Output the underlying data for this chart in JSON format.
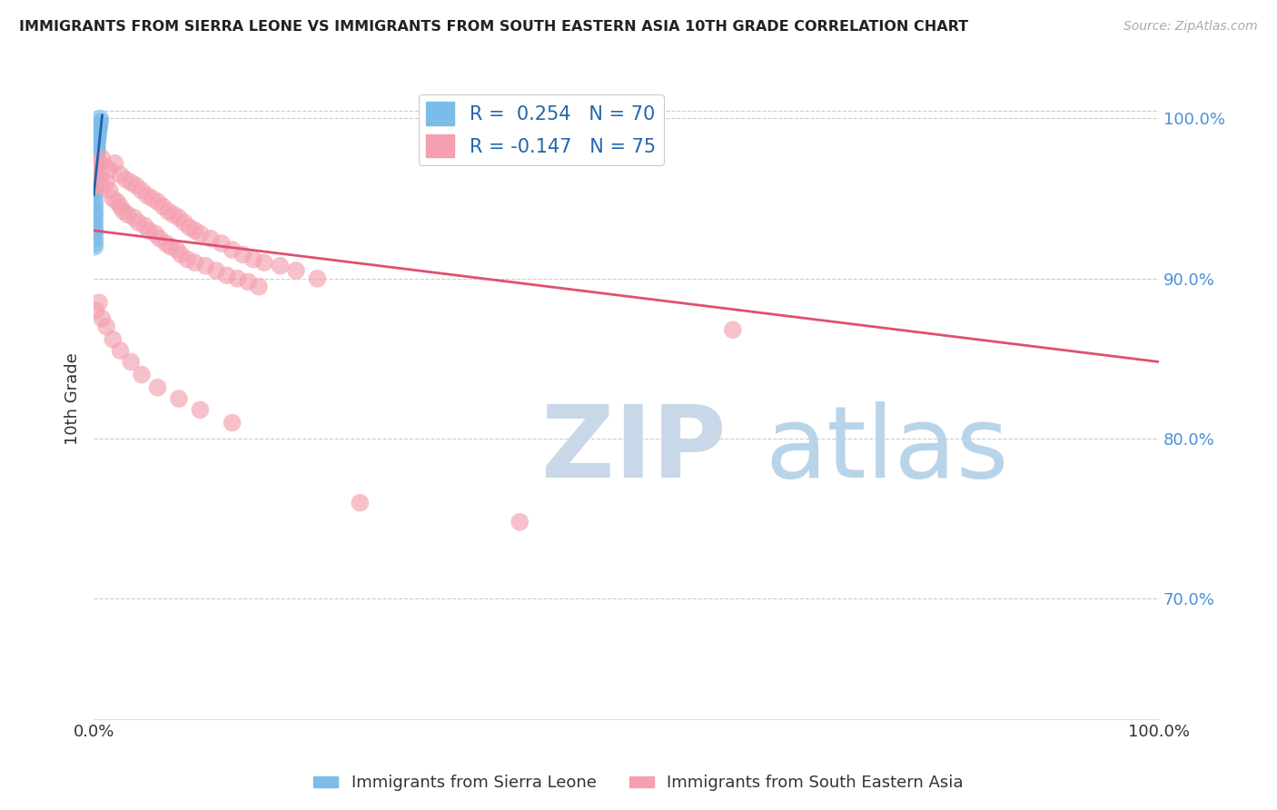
{
  "title": "IMMIGRANTS FROM SIERRA LEONE VS IMMIGRANTS FROM SOUTH EASTERN ASIA 10TH GRADE CORRELATION CHART",
  "source": "Source: ZipAtlas.com",
  "xlabel_left": "Immigrants from Sierra Leone",
  "xlabel_right": "Immigrants from South Eastern Asia",
  "ylabel": "10th Grade",
  "r_blue": 0.254,
  "n_blue": 70,
  "r_pink": -0.147,
  "n_pink": 75,
  "x_min": 0.0,
  "x_max": 1.0,
  "y_min": 0.625,
  "y_max": 1.025,
  "right_yticks": [
    0.7,
    0.8,
    0.9,
    1.0
  ],
  "right_yticklabels": [
    "70.0%",
    "80.0%",
    "90.0%",
    "100.0%"
  ],
  "blue_color": "#7bbde8",
  "pink_color": "#f4a0b0",
  "blue_line_color": "#2060b0",
  "pink_line_color": "#e05070",
  "watermark_zip_color": "#c8d8e8",
  "watermark_atlas_color": "#b8d4e8",
  "background_color": "#ffffff",
  "grid_color": "#cccccc",
  "blue_scatter_x": [
    0.001,
    0.002,
    0.001,
    0.003,
    0.001,
    0.002,
    0.004,
    0.001,
    0.002,
    0.003,
    0.001,
    0.005,
    0.002,
    0.001,
    0.003,
    0.002,
    0.001,
    0.004,
    0.002,
    0.001,
    0.003,
    0.002,
    0.001,
    0.006,
    0.002,
    0.001,
    0.003,
    0.002,
    0.004,
    0.001,
    0.002,
    0.001,
    0.003,
    0.005,
    0.002,
    0.001,
    0.004,
    0.002,
    0.001,
    0.003,
    0.002,
    0.001,
    0.003,
    0.002,
    0.005,
    0.001,
    0.002,
    0.004,
    0.001,
    0.003,
    0.002,
    0.001,
    0.003,
    0.002,
    0.004,
    0.001,
    0.002,
    0.003,
    0.001,
    0.002,
    0.006,
    0.003,
    0.001,
    0.002,
    0.004,
    0.001,
    0.002,
    0.003,
    0.001,
    0.002
  ],
  "blue_scatter_y": [
    0.98,
    0.985,
    0.975,
    0.99,
    0.97,
    0.978,
    0.992,
    0.965,
    0.982,
    0.988,
    0.972,
    0.995,
    0.978,
    0.968,
    0.985,
    0.975,
    0.962,
    0.99,
    0.98,
    0.96,
    0.988,
    0.972,
    0.958,
    0.998,
    0.982,
    0.955,
    0.985,
    0.97,
    0.992,
    0.952,
    0.975,
    0.948,
    0.98,
    0.994,
    0.968,
    0.945,
    0.988,
    0.963,
    0.942,
    0.978,
    0.965,
    0.94,
    0.982,
    0.96,
    0.996,
    0.938,
    0.97,
    0.99,
    0.935,
    0.975,
    0.962,
    0.932,
    0.98,
    0.958,
    0.992,
    0.93,
    0.968,
    0.985,
    0.928,
    0.965,
    1.0,
    0.988,
    0.925,
    0.972,
    0.994,
    0.922,
    0.963,
    0.983,
    0.92,
    0.96
  ],
  "pink_scatter_x": [
    0.002,
    0.005,
    0.003,
    0.008,
    0.004,
    0.01,
    0.006,
    0.015,
    0.008,
    0.02,
    0.012,
    0.025,
    0.015,
    0.03,
    0.018,
    0.035,
    0.022,
    0.04,
    0.025,
    0.045,
    0.028,
    0.05,
    0.032,
    0.055,
    0.038,
    0.06,
    0.042,
    0.065,
    0.048,
    0.07,
    0.052,
    0.075,
    0.058,
    0.08,
    0.062,
    0.085,
    0.068,
    0.09,
    0.072,
    0.095,
    0.078,
    0.1,
    0.082,
    0.11,
    0.088,
    0.12,
    0.095,
    0.13,
    0.105,
    0.14,
    0.115,
    0.15,
    0.125,
    0.16,
    0.135,
    0.175,
    0.145,
    0.19,
    0.155,
    0.21,
    0.002,
    0.005,
    0.008,
    0.012,
    0.018,
    0.025,
    0.035,
    0.045,
    0.06,
    0.08,
    0.1,
    0.13,
    0.25,
    0.4,
    0.6
  ],
  "pink_scatter_y": [
    0.968,
    0.972,
    0.96,
    0.975,
    0.958,
    0.97,
    0.963,
    0.968,
    0.958,
    0.972,
    0.96,
    0.965,
    0.955,
    0.962,
    0.95,
    0.96,
    0.948,
    0.958,
    0.945,
    0.955,
    0.942,
    0.952,
    0.94,
    0.95,
    0.938,
    0.948,
    0.935,
    0.945,
    0.933,
    0.942,
    0.93,
    0.94,
    0.928,
    0.938,
    0.925,
    0.935,
    0.922,
    0.932,
    0.92,
    0.93,
    0.918,
    0.928,
    0.915,
    0.925,
    0.912,
    0.922,
    0.91,
    0.918,
    0.908,
    0.915,
    0.905,
    0.912,
    0.902,
    0.91,
    0.9,
    0.908,
    0.898,
    0.905,
    0.895,
    0.9,
    0.88,
    0.885,
    0.875,
    0.87,
    0.862,
    0.855,
    0.848,
    0.84,
    0.832,
    0.825,
    0.818,
    0.81,
    0.76,
    0.748,
    0.868
  ],
  "blue_trend_x0": 0.0,
  "blue_trend_x1": 0.008,
  "blue_trend_y0": 0.952,
  "blue_trend_y1": 1.002,
  "pink_trend_x0": 0.0,
  "pink_trend_x1": 1.0,
  "pink_trend_y0": 0.93,
  "pink_trend_y1": 0.848
}
